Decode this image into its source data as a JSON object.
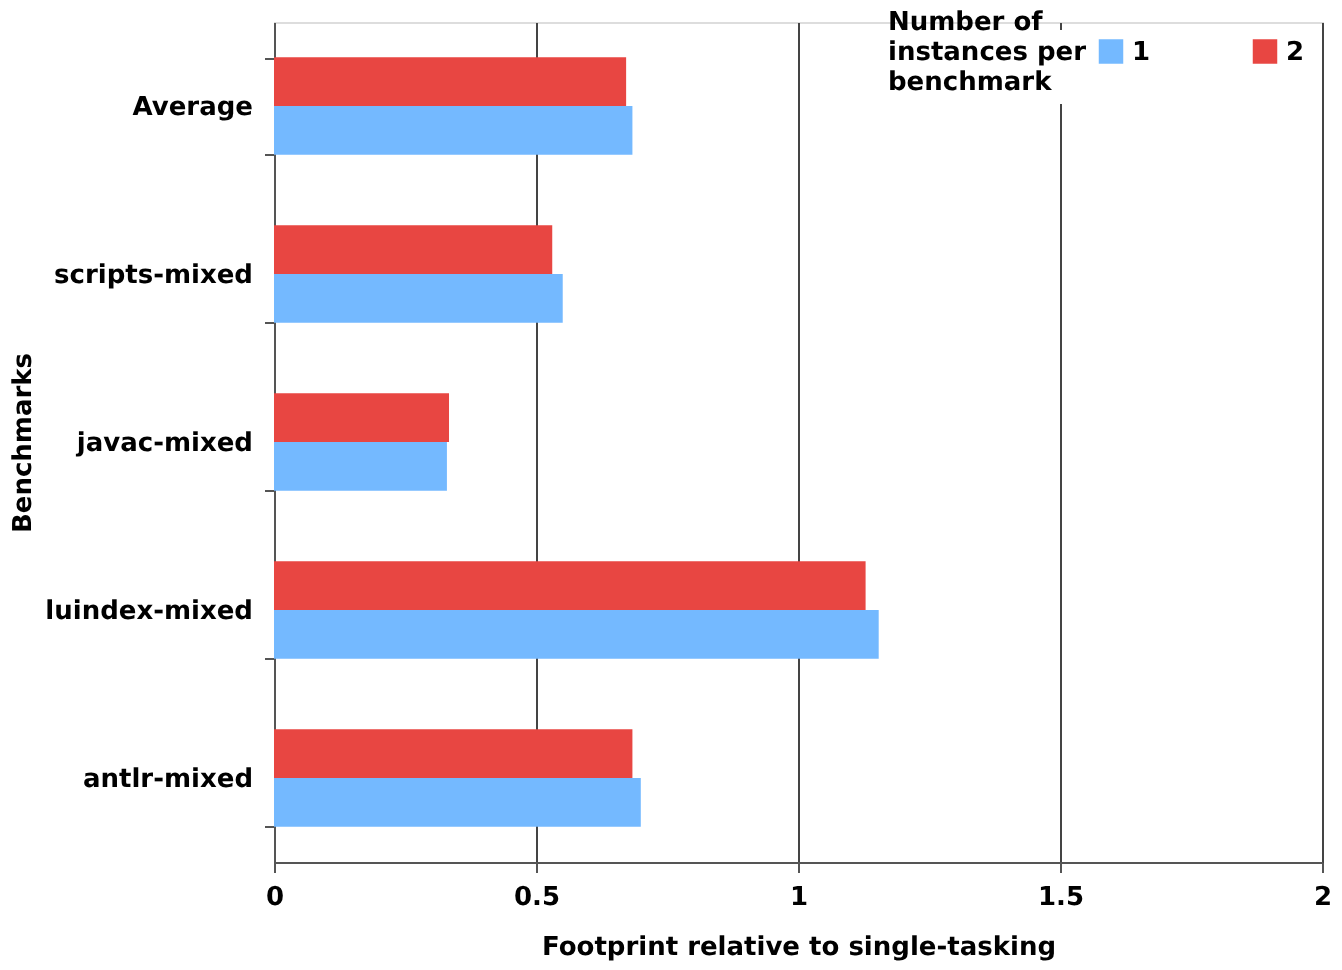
{
  "chart_data": {
    "type": "bar",
    "orientation": "horizontal",
    "xlabel": "Footprint relative to single-tasking",
    "ylabel": "Benchmarks",
    "categories": [
      "Average",
      "scripts-mixed",
      "javac-mixed",
      "luindex-mixed",
      "antlr-mixed"
    ],
    "series": [
      {
        "name": "1",
        "color": "#74b9ff",
        "values": [
          0.684,
          0.551,
          0.33,
          1.154,
          0.7
        ]
      },
      {
        "name": "2",
        "color": "#e84642",
        "values": [
          0.672,
          0.531,
          0.334,
          1.129,
          0.684
        ]
      }
    ],
    "legend_title": "Number of instances per benchmark",
    "legend": "top right",
    "xlim": [
      0,
      2
    ],
    "xticks": [
      0,
      0.5,
      1,
      1.5,
      2
    ],
    "grid": "x"
  }
}
